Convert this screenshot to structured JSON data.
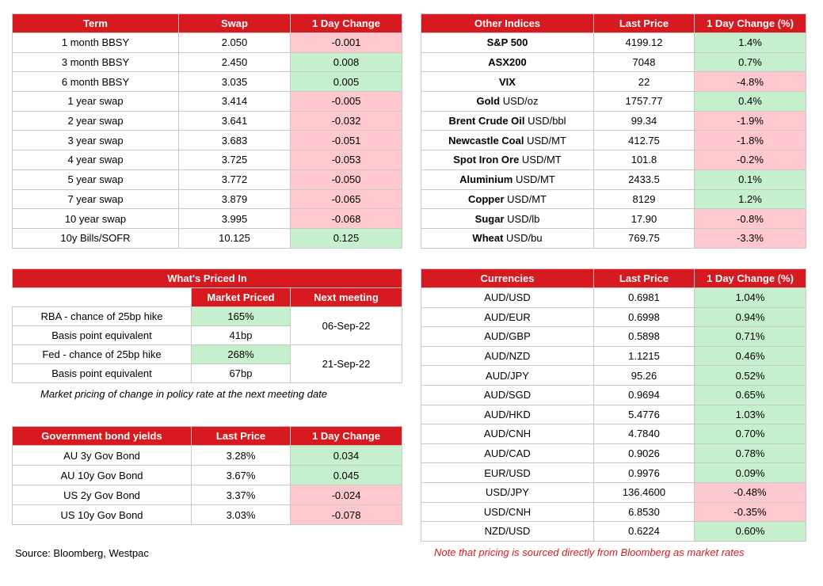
{
  "colors": {
    "header_red": "#d71920",
    "positive_fill": "#c6efce",
    "negative_fill": "#ffc7ce"
  },
  "swaps": {
    "headers": [
      "Term",
      "Swap",
      "1 Day Change"
    ],
    "rows": [
      {
        "term": "1 month BBSY",
        "swap": "2.050",
        "change": "-0.001",
        "dir": "neg"
      },
      {
        "term": "3 month BBSY",
        "swap": "2.450",
        "change": "0.008",
        "dir": "pos"
      },
      {
        "term": "6 month BBSY",
        "swap": "3.035",
        "change": "0.005",
        "dir": "pos"
      },
      {
        "term": "1 year swap",
        "swap": "3.414",
        "change": "-0.005",
        "dir": "neg"
      },
      {
        "term": "2 year swap",
        "swap": "3.641",
        "change": "-0.032",
        "dir": "neg"
      },
      {
        "term": "3 year swap",
        "swap": "3.683",
        "change": "-0.051",
        "dir": "neg"
      },
      {
        "term": "4 year swap",
        "swap": "3.725",
        "change": "-0.053",
        "dir": "neg"
      },
      {
        "term": "5 year swap",
        "swap": "3.772",
        "change": "-0.050",
        "dir": "neg"
      },
      {
        "term": "7 year swap",
        "swap": "3.879",
        "change": "-0.065",
        "dir": "neg"
      },
      {
        "term": "10 year swap",
        "swap": "3.995",
        "change": "-0.068",
        "dir": "neg"
      },
      {
        "term": "10y Bills/SOFR",
        "swap": "10.125",
        "change": "0.125",
        "dir": "pos"
      }
    ]
  },
  "indices": {
    "headers": [
      "Other Indices",
      "Last Price",
      "1 Day Change (%)"
    ],
    "rows": [
      {
        "name": "S&P 500",
        "unit": "",
        "price": "4199.12",
        "change": "1.4%",
        "dir": "pos"
      },
      {
        "name": "ASX200",
        "unit": "",
        "price": "7048",
        "change": "0.7%",
        "dir": "pos"
      },
      {
        "name": "VIX",
        "unit": "",
        "price": "22",
        "change": "-4.8%",
        "dir": "neg"
      },
      {
        "name": "Gold",
        "unit": "USD/oz",
        "price": "1757.77",
        "change": "0.4%",
        "dir": "pos"
      },
      {
        "name": "Brent Crude Oil",
        "unit": "USD/bbl",
        "price": "99.34",
        "change": "-1.9%",
        "dir": "neg"
      },
      {
        "name": "Newcastle Coal",
        "unit": "USD/MT",
        "price": "412.75",
        "change": "-1.8%",
        "dir": "neg"
      },
      {
        "name": "Spot Iron Ore",
        "unit": "USD/MT",
        "price": "101.8",
        "change": "-0.2%",
        "dir": "neg"
      },
      {
        "name": "Aluminium",
        "unit": "USD/MT",
        "price": "2433.5",
        "change": "0.1%",
        "dir": "pos"
      },
      {
        "name": "Copper",
        "unit": "USD/MT",
        "price": "8129",
        "change": "1.2%",
        "dir": "pos"
      },
      {
        "name": "Sugar",
        "unit": "USD/lb",
        "price": "17.90",
        "change": "-0.8%",
        "dir": "neg"
      },
      {
        "name": "Wheat",
        "unit": "USD/bu",
        "price": "769.75",
        "change": "-3.3%",
        "dir": "neg"
      }
    ]
  },
  "priced_in": {
    "title": "What's Priced In",
    "headers": [
      "Market Priced",
      "Next meeting"
    ],
    "rows": [
      {
        "label": "RBA - chance of 25bp hike",
        "value": "165%",
        "dir": "pos"
      },
      {
        "label": "Basis point equivalent",
        "value": "41bp",
        "dir": "neu"
      },
      {
        "label": "Fed - chance of 25bp hike",
        "value": "268%",
        "dir": "pos"
      },
      {
        "label": "Basis point equivalent",
        "value": "67bp",
        "dir": "neu"
      }
    ],
    "meetings": [
      "06-Sep-22",
      "21-Sep-22"
    ],
    "note": "Market pricing of change in policy rate at the next meeting date"
  },
  "bonds": {
    "headers": [
      "Government bond yields",
      "Last Price",
      "1 Day Change"
    ],
    "rows": [
      {
        "name": "AU 3y Gov Bond",
        "price": "3.28%",
        "change": "0.034",
        "dir": "pos"
      },
      {
        "name": "AU 10y Gov Bond",
        "price": "3.67%",
        "change": "0.045",
        "dir": "pos"
      },
      {
        "name": "US 2y Gov Bond",
        "price": "3.37%",
        "change": "-0.024",
        "dir": "neg"
      },
      {
        "name": "US 10y Gov Bond",
        "price": "3.03%",
        "change": "-0.078",
        "dir": "neg"
      }
    ]
  },
  "currencies": {
    "headers": [
      "Currencies",
      "Last Price",
      "1 Day Change (%)"
    ],
    "rows": [
      {
        "pair": "AUD/USD",
        "price": "0.6981",
        "change": "1.04%",
        "dir": "pos"
      },
      {
        "pair": "AUD/EUR",
        "price": "0.6998",
        "change": "0.94%",
        "dir": "pos"
      },
      {
        "pair": "AUD/GBP",
        "price": "0.5898",
        "change": "0.71%",
        "dir": "pos"
      },
      {
        "pair": "AUD/NZD",
        "price": "1.1215",
        "change": "0.46%",
        "dir": "pos"
      },
      {
        "pair": "AUD/JPY",
        "price": "95.26",
        "change": "0.52%",
        "dir": "pos"
      },
      {
        "pair": "AUD/SGD",
        "price": "0.9694",
        "change": "0.65%",
        "dir": "pos"
      },
      {
        "pair": "AUD/HKD",
        "price": "5.4776",
        "change": "1.03%",
        "dir": "pos"
      },
      {
        "pair": "AUD/CNH",
        "price": "4.7840",
        "change": "0.70%",
        "dir": "pos"
      },
      {
        "pair": "AUD/CAD",
        "price": "0.9026",
        "change": "0.78%",
        "dir": "pos"
      },
      {
        "pair": "EUR/USD",
        "price": "0.9976",
        "change": "0.09%",
        "dir": "pos"
      },
      {
        "pair": "USD/JPY",
        "price": "136.4600",
        "change": "-0.48%",
        "dir": "neg"
      },
      {
        "pair": "USD/CNH",
        "price": "6.8530",
        "change": "-0.35%",
        "dir": "neg"
      },
      {
        "pair": "NZD/USD",
        "price": "0.6224",
        "change": "0.60%",
        "dir": "pos"
      }
    ],
    "note": "Note that pricing is sourced directly from Bloomberg as market rates"
  },
  "source": "Source: Bloomberg, Westpac"
}
